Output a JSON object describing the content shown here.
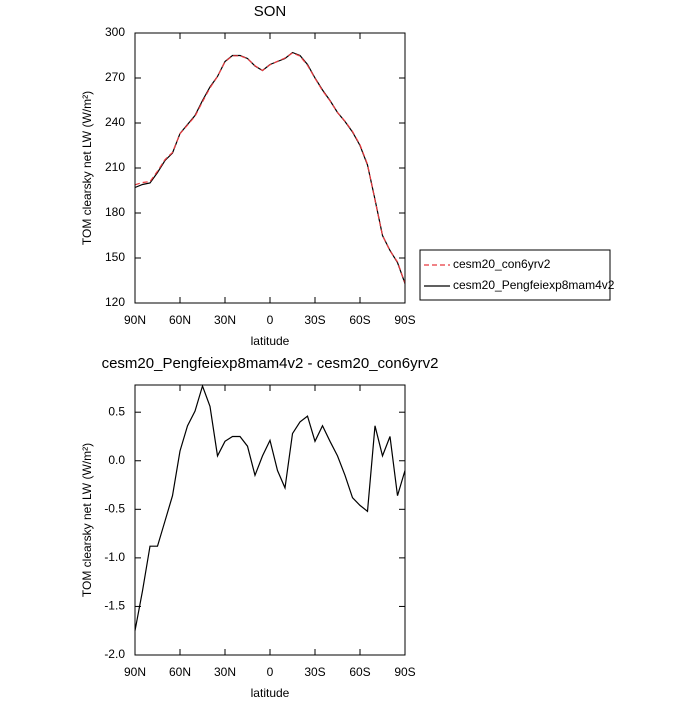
{
  "chart_data": [
    {
      "type": "line",
      "title": "SON",
      "xlabel": "latitude",
      "ylabel": "TOM clearsky net LW (W/m²)",
      "x": [
        90,
        85,
        80,
        75,
        70,
        65,
        60,
        55,
        50,
        45,
        40,
        35,
        30,
        25,
        20,
        15,
        10,
        5,
        0,
        -5,
        -10,
        -15,
        -20,
        -25,
        -30,
        -35,
        -40,
        -45,
        -50,
        -55,
        -60,
        -65,
        -70,
        -75,
        -80,
        -85,
        -90
      ],
      "xlim": [
        90,
        -90
      ],
      "xticks": [
        {
          "value": 90,
          "label": "90N"
        },
        {
          "value": 60,
          "label": "60N"
        },
        {
          "value": 30,
          "label": "30N"
        },
        0,
        {
          "value": -30,
          "label": "30S"
        },
        {
          "value": -60,
          "label": "60S"
        },
        {
          "value": -90,
          "label": "90S"
        }
      ],
      "ylim": [
        120,
        300
      ],
      "yticks": [
        120,
        150,
        180,
        210,
        240,
        270,
        300
      ],
      "legend": "outside-right",
      "series": [
        {
          "name": "cesm20_con6yrv2",
          "color": "#e8383d",
          "linestyle": "dashed",
          "values": [
            198.8,
            200.3,
            200.9,
            207.9,
            215.6,
            220.4,
            232.9,
            238.6,
            244.5,
            254.2,
            263.4,
            271.0,
            280.8,
            284.8,
            284.8,
            282.9,
            278.2,
            275.0,
            278.8,
            281.1,
            283.3,
            286.7,
            284.6,
            278.5,
            269.8,
            261.6,
            254.8,
            247.0,
            241.2,
            234.4,
            225.5,
            212.5,
            188.6,
            165.0,
            154.8,
            147.4,
            133.1
          ]
        },
        {
          "name": "cesm20_Pengfeiexp8mam4v2",
          "color": "#000000",
          "linestyle": "solid",
          "values": [
            197,
            199,
            200,
            207,
            215,
            220,
            233,
            239,
            245,
            255,
            264,
            271,
            281,
            285,
            285,
            283,
            278,
            275,
            279,
            281,
            283,
            287,
            285,
            279,
            270,
            262,
            255,
            247,
            241,
            234,
            225,
            212,
            189,
            165,
            155,
            147,
            133
          ]
        }
      ]
    },
    {
      "type": "line",
      "title": "cesm20_Pengfeiexp8mam4v2 - cesm20_con6yrv2",
      "xlabel": "latitude",
      "ylabel": "TOM clearsky net LW (W/m²)",
      "x": [
        90,
        85,
        80,
        75,
        70,
        65,
        60,
        55,
        50,
        45,
        40,
        35,
        30,
        25,
        20,
        15,
        10,
        5,
        0,
        -5,
        -10,
        -15,
        -20,
        -25,
        -30,
        -35,
        -40,
        -45,
        -50,
        -55,
        -60,
        -65,
        -70,
        -75,
        -80,
        -85,
        -90
      ],
      "xlim": [
        90,
        -90
      ],
      "xticks": [
        {
          "value": 90,
          "label": "90N"
        },
        {
          "value": 60,
          "label": "60N"
        },
        {
          "value": 30,
          "label": "30N"
        },
        0,
        {
          "value": -30,
          "label": "30S"
        },
        {
          "value": -60,
          "label": "60S"
        },
        {
          "value": -90,
          "label": "90S"
        }
      ],
      "ylim": [
        -2.0,
        0.78
      ],
      "yticks": [
        {
          "value": -2.0,
          "label": "-2.0"
        },
        -1.5,
        {
          "value": -1.0,
          "label": "-1.0"
        },
        -0.5,
        {
          "value": 0.0,
          "label": "0.0"
        },
        0.5
      ],
      "series": [
        {
          "color": "#000000",
          "linestyle": "solid",
          "values": [
            -1.75,
            -1.34,
            -0.88,
            -0.88,
            -0.62,
            -0.36,
            0.1,
            0.36,
            0.51,
            0.77,
            0.56,
            0.05,
            0.2,
            0.25,
            0.25,
            0.15,
            -0.15,
            0.05,
            0.21,
            -0.1,
            -0.28,
            0.28,
            0.4,
            0.46,
            0.2,
            0.36,
            0.2,
            0.05,
            -0.15,
            -0.38,
            -0.46,
            -0.52,
            0.36,
            0.05,
            0.25,
            -0.36,
            -0.1
          ]
        }
      ]
    }
  ]
}
